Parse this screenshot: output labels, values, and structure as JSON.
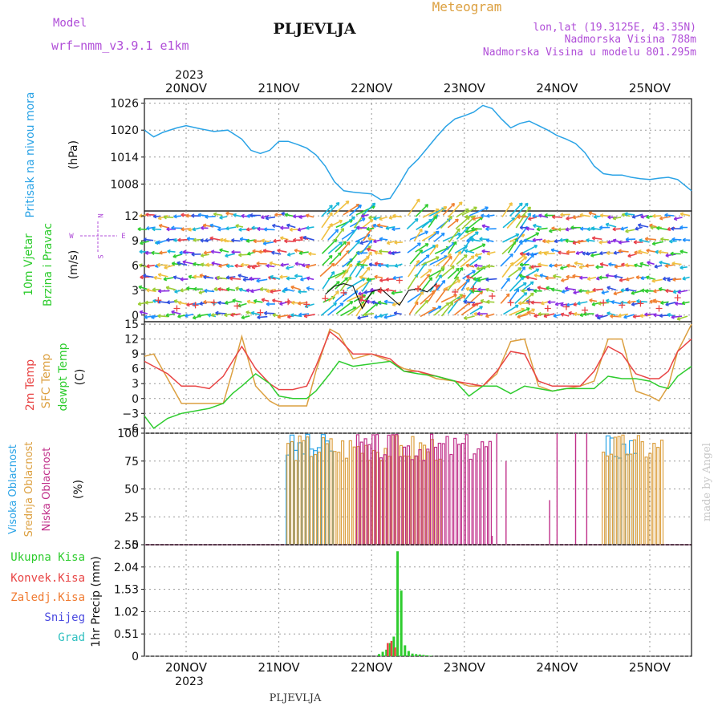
{
  "header": {
    "model_label": "Model",
    "model_name": "wrf−nmm_v3.9.1  e1km",
    "station": "PLJEVLJA",
    "product": "Meteogram",
    "coords": "lon,lat (19.3125E, 43.35N)",
    "altitude": "Nadmorska Visina 788m",
    "model_altitude": "Nadmorska Visina u modelu 801.295m",
    "footer_station": "PLJEVLJA",
    "watermark": "made by Angel"
  },
  "time_axis": {
    "year": "2023",
    "labels": [
      "20NOV",
      "21NOV",
      "22NOV",
      "23NOV",
      "24NOV",
      "25NOV"
    ],
    "range_days": [
      -0.45,
      5.45
    ]
  },
  "colors": {
    "pressure": "#2aa3e6",
    "temp2m": "#e84444",
    "sfc": "#dca040",
    "dew": "#2ecc2e",
    "high_cloud": "#2aa3e6",
    "mid_cloud": "#dca040",
    "low_cloud": "#c0308a",
    "precip": "#2ecc2e",
    "conv": "#e84444",
    "freeze": "#f07a30",
    "snow": "#4a4ae0",
    "grad": "#30c0c0",
    "purple": "#b04ed8"
  },
  "chart_data": [
    {
      "type": "line",
      "panel": "pressure",
      "ylabel_1": "Pritisak na nivou mora",
      "ylabel_2": "(hPa)",
      "ylim": [
        1002,
        1027
      ],
      "yticks": [
        "1026",
        "1020",
        "1014",
        "1008"
      ],
      "series": [
        {
          "x": [
            -0.45,
            -0.35,
            -0.25,
            -0.1,
            0.0,
            0.15,
            0.3,
            0.45,
            0.6,
            0.7,
            0.8,
            0.9,
            1.0,
            1.1,
            1.2,
            1.3,
            1.4,
            1.5,
            1.6,
            1.7,
            1.8,
            1.9,
            2.0,
            2.1,
            2.2,
            2.3,
            2.4,
            2.5,
            2.6,
            2.7,
            2.8,
            2.9,
            3.0,
            3.1,
            3.2,
            3.3,
            3.4,
            3.5,
            3.6,
            3.7,
            3.8,
            3.9,
            4.0,
            4.1,
            4.2,
            4.3,
            4.4,
            4.5,
            4.6,
            4.7,
            4.8,
            4.9,
            5.0,
            5.1,
            5.2,
            5.3,
            5.45
          ],
          "values": [
            1020,
            1018.5,
            1019.5,
            1020.5,
            1021,
            1020.3,
            1019.7,
            1020,
            1018,
            1015.5,
            1014.8,
            1015.5,
            1017.5,
            1017.5,
            1016.8,
            1016,
            1014.5,
            1012,
            1008.5,
            1006.5,
            1006.2,
            1006,
            1005.8,
            1004.5,
            1004.8,
            1008,
            1011.5,
            1013.5,
            1016,
            1018.5,
            1020.8,
            1022.5,
            1023.2,
            1024,
            1025.5,
            1024.8,
            1022.5,
            1020.5,
            1021.5,
            1022,
            1021,
            1020,
            1018.8,
            1018,
            1017,
            1015,
            1012,
            1010.3,
            1010,
            1010,
            1009.5,
            1009.2,
            1009,
            1009.3,
            1009.5,
            1009,
            1006.5
          ]
        }
      ]
    },
    {
      "type": "scatter",
      "panel": "wind",
      "ylabel_1": "10m Vjetar",
      "ylabel_2": "Brzina i Pravac",
      "ylabel_3": "(m/s)",
      "compass": {
        "n": "N",
        "s": "S",
        "e": "E",
        "w": "W"
      },
      "ylim": [
        -0.8,
        12.6
      ],
      "yticks": [
        "12",
        "9",
        "6",
        "3",
        "0"
      ],
      "series": [
        {
          "name_key": "speed",
          "x": [
            1.5,
            1.6,
            1.7,
            1.8,
            1.9,
            2.0,
            2.1,
            2.2,
            2.3,
            2.4,
            2.5,
            2.6,
            2.7
          ],
          "values": [
            2.5,
            3.5,
            3.8,
            3.5,
            0.8,
            2.8,
            3.2,
            2.2,
            1.2,
            3.0,
            3.2,
            2.8,
            3.8
          ]
        },
        {
          "name_key": "gust",
          "x": [
            -0.3,
            -0.1,
            0.1,
            0.3,
            0.55,
            0.8,
            1.1,
            1.3,
            1.5,
            1.7,
            1.9,
            2.1,
            2.3,
            2.5,
            2.7,
            2.9,
            3.1,
            3.3,
            3.5,
            3.7,
            3.9,
            4.1,
            4.3,
            4.5,
            4.7,
            4.9,
            5.1,
            5.3
          ],
          "values": [
            1.8,
            0.8,
            1.2,
            1.5,
            1.1,
            0.3,
            1.6,
            1.3,
            2.0,
            2.7,
            2.2,
            3.0,
            4.2,
            3.2,
            3.5,
            2.8,
            3.2,
            2.3,
            1.5,
            1.6,
            0.8,
            1.0,
            0.6,
            1.5,
            1.2,
            1.4,
            0.8,
            2.1
          ]
        }
      ]
    },
    {
      "type": "line",
      "panel": "temperature",
      "ylabel_1": "2m Temp",
      "ylabel_2": "SFC Temp",
      "ylabel_3": "dewpt Temp",
      "ylabel_4": "(C)",
      "ylim": [
        -7,
        15.5
      ],
      "yticks": [
        "15",
        "12",
        "9",
        "6",
        "3",
        "0",
        "−3",
        "−6"
      ],
      "x": [
        -0.45,
        -0.35,
        -0.2,
        -0.05,
        0.1,
        0.25,
        0.4,
        0.5,
        0.6,
        0.75,
        0.9,
        1.0,
        1.15,
        1.3,
        1.4,
        1.55,
        1.65,
        1.8,
        2.0,
        2.2,
        2.35,
        2.5,
        2.7,
        2.9,
        3.05,
        3.2,
        3.35,
        3.5,
        3.65,
        3.8,
        3.95,
        4.1,
        4.25,
        4.4,
        4.55,
        4.7,
        4.85,
        5.0,
        5.1,
        5.2,
        5.3,
        5.45
      ],
      "series": [
        {
          "name_key": "t2m",
          "values": [
            7.5,
            6.5,
            5.0,
            2.5,
            2.5,
            2.0,
            4.5,
            7.5,
            10.5,
            6.0,
            3.0,
            1.8,
            1.8,
            2.5,
            6.5,
            13.5,
            12.0,
            9.0,
            9.0,
            8.0,
            5.5,
            5.5,
            4.5,
            3.5,
            3.0,
            2.5,
            5.5,
            9.5,
            9.0,
            3.5,
            2.5,
            2.5,
            2.5,
            5.5,
            10.5,
            9.0,
            5.0,
            4.0,
            4.0,
            5.5,
            9.5,
            12.0
          ]
        },
        {
          "name_key": "tsfc",
          "values": [
            8.5,
            9.0,
            4.0,
            -1.0,
            -1.0,
            -1.0,
            -1.0,
            5.5,
            12.5,
            2.5,
            -0.5,
            -1.5,
            -1.5,
            -1.5,
            5.5,
            14.0,
            13.0,
            8.0,
            9.0,
            7.5,
            6.0,
            5.5,
            4.0,
            3.5,
            2.5,
            2.5,
            5.0,
            11.5,
            12.0,
            2.5,
            1.5,
            2.0,
            2.5,
            3.5,
            12.0,
            12.0,
            1.5,
            0.5,
            -0.5,
            2.5,
            9.5,
            15.0
          ]
        },
        {
          "name_key": "tdew",
          "values": [
            -3.5,
            -6.0,
            -4.0,
            -3.0,
            -2.5,
            -2.0,
            -1.0,
            1.0,
            2.5,
            5.0,
            3.0,
            0.5,
            0.0,
            0.0,
            1.5,
            5.0,
            7.5,
            6.5,
            7.0,
            7.5,
            5.5,
            5.0,
            4.5,
            3.5,
            0.5,
            2.5,
            2.5,
            1.0,
            2.5,
            2.0,
            1.5,
            2.0,
            2.0,
            2.0,
            4.5,
            4.0,
            4.0,
            3.5,
            2.5,
            2.0,
            4.5,
            6.5
          ]
        }
      ]
    },
    {
      "type": "bar",
      "panel": "cloud",
      "ylabel_1": "Visoka Oblacnost",
      "ylabel_2": "Srednja Oblacnost",
      "ylabel_3": "Niska Oblacnost",
      "ylabel_4": "(%)",
      "ylim": [
        0,
        100
      ],
      "yticks": [
        "100",
        "75",
        "50",
        "25",
        "0"
      ],
      "series": [
        {
          "name_key": "high",
          "x_range": [
            1.1,
            1.6
          ],
          "value": 100
        },
        {
          "name_key": "mid",
          "x_range": [
            1.1,
            2.75
          ],
          "value": 100
        },
        {
          "name_key": "low",
          "x_range": [
            1.85,
            3.3
          ],
          "value": 100
        },
        {
          "name_key": "high_2",
          "x_range": [
            4.55,
            4.85
          ],
          "value": 100
        },
        {
          "name_key": "mid_2",
          "x_range": [
            4.5,
            5.15
          ],
          "value": 100
        }
      ]
    },
    {
      "type": "bar",
      "panel": "precip",
      "legend": [
        "Ukupna Kisa",
        "Konvek.Kisa",
        "Zaledj.Kisa",
        "Snijeg",
        "Grad"
      ],
      "ylabel_1": "1hr Precip (mm)",
      "ylim": [
        0,
        2.55
      ],
      "yticks": [
        "2.55",
        "2.04",
        "1.53",
        "1.02",
        "0.51",
        "0"
      ],
      "series": [
        {
          "name_key": "total",
          "x": [
            2.08,
            2.12,
            2.16,
            2.2,
            2.24,
            2.28,
            2.32,
            2.36,
            2.4,
            2.44,
            2.48,
            2.52,
            2.56,
            2.6,
            2.64
          ],
          "values": [
            0.05,
            0.1,
            0.15,
            0.3,
            0.45,
            2.4,
            1.5,
            0.25,
            0.12,
            0.06,
            0.05,
            0.04,
            0.03,
            0.02,
            0.01
          ]
        },
        {
          "name_key": "convective",
          "x": [
            2.2,
            2.24,
            2.28
          ],
          "values": [
            0.3,
            0.35,
            0.2
          ]
        }
      ]
    }
  ]
}
